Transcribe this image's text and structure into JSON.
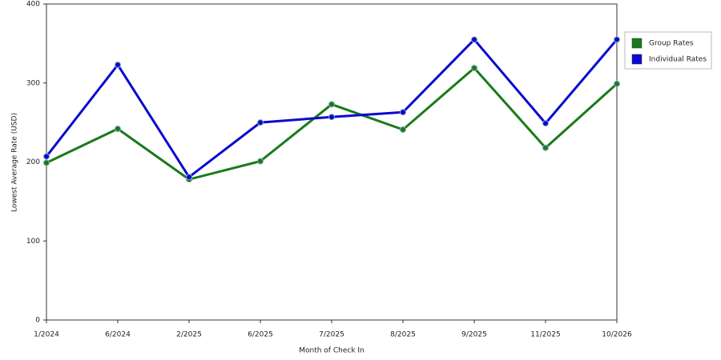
{
  "chart_data": {
    "type": "line",
    "x_label": "Month of Check In",
    "y_label": "Lowest Average Rate (USD)",
    "categories": [
      "1/2024",
      "6/2024",
      "2/2025",
      "6/2025",
      "7/2025",
      "8/2025",
      "9/2025",
      "11/2025",
      "10/2026"
    ],
    "series": [
      {
        "name": "Group Rates",
        "color": "#1a7a1a",
        "values": [
          199,
          242,
          178,
          201,
          273,
          241,
          319,
          218,
          299
        ]
      },
      {
        "name": "Individual Rates",
        "color": "#0a0ad0",
        "values": [
          207,
          323,
          181,
          250,
          257,
          263,
          355,
          249,
          355
        ]
      }
    ],
    "ylim": [
      0,
      400
    ],
    "yticks": [
      0,
      100,
      200,
      300,
      400
    ],
    "grid": true,
    "legend": "right"
  }
}
